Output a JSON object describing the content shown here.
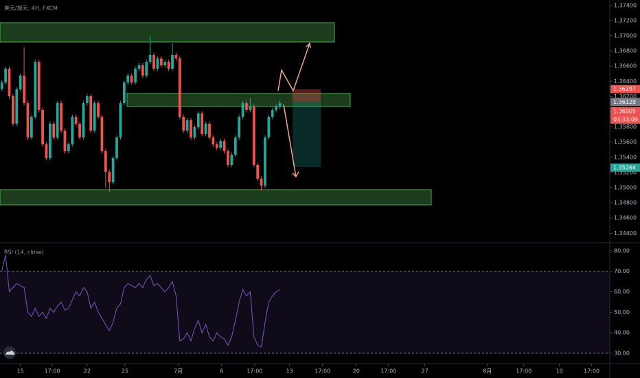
{
  "title": "美元/加元, 4H, FXCM",
  "chart_data": [
    {
      "type": "candlestick",
      "up_color": "#26a69a",
      "down_color": "#ef5350",
      "xlim": [
        -0.5,
        164
      ],
      "ylim": [
        1.34285,
        1.37471
      ],
      "xticks": [
        {
          "value": 5,
          "label": "15"
        },
        {
          "value": 13.6,
          "label": "17:00"
        },
        {
          "value": 23,
          "label": "22"
        },
        {
          "value": 33.2,
          "label": "25"
        },
        {
          "value": 47.6,
          "label": "7月"
        },
        {
          "value": 59.3,
          "label": "6"
        },
        {
          "value": 68.2,
          "label": "17:00"
        },
        {
          "value": 77.6,
          "label": "13"
        },
        {
          "value": 86.5,
          "label": "17:00"
        },
        {
          "value": 95.6,
          "label": "20"
        },
        {
          "value": 104.3,
          "label": "17:00"
        },
        {
          "value": 114.1,
          "label": "27"
        },
        {
          "value": 131,
          "label": "8月"
        },
        {
          "value": 140.8,
          "label": "17:00"
        },
        {
          "value": 150.4,
          "label": "10"
        },
        {
          "value": 159.1,
          "label": "17:00"
        }
      ],
      "yticks": [
        {
          "value": 1.374,
          "label": "1.37400"
        },
        {
          "value": 1.372,
          "label": "1.37200"
        },
        {
          "value": 1.37,
          "label": "1.37000"
        },
        {
          "value": 1.368,
          "label": "1.36800"
        },
        {
          "value": 1.366,
          "label": "1.36600"
        },
        {
          "value": 1.364,
          "label": "1.36400"
        },
        {
          "value": 1.362,
          "label": "1.36200"
        },
        {
          "value": 1.36,
          "label": "1.36000"
        },
        {
          "value": 1.358,
          "label": "1.35800"
        },
        {
          "value": 1.356,
          "label": "1.35600"
        },
        {
          "value": 1.354,
          "label": "1.35400"
        },
        {
          "value": 1.352,
          "label": "1.35200"
        },
        {
          "value": 1.35,
          "label": "1.35000"
        },
        {
          "value": 1.348,
          "label": "1.34800"
        },
        {
          "value": 1.346,
          "label": "1.34600"
        },
        {
          "value": 1.344,
          "label": "1.34400"
        }
      ],
      "open": [
        1.363,
        1.36385,
        1.36566,
        1.36204,
        1.35842,
        1.36294,
        1.36475,
        1.36113,
        1.35661,
        1.35932,
        1.36656,
        1.36023,
        1.3557,
        1.35389,
        1.35842,
        1.35661,
        1.36113,
        1.35751,
        1.3548,
        1.3557,
        1.35932,
        1.35842,
        1.35661,
        1.36113,
        1.36204,
        1.35751,
        1.36113,
        1.35932,
        1.3548,
        1.35208,
        1.35072,
        1.35389,
        1.35661,
        1.36113,
        1.36385,
        1.36475,
        1.36385,
        1.36566,
        1.36611,
        1.36475,
        1.36656,
        1.36747,
        1.36566,
        1.36701,
        1.36611,
        1.36656,
        1.36566,
        1.36747,
        1.36701,
        1.35932,
        1.35751,
        1.35887,
        1.35661,
        1.35796,
        1.35977,
        1.35706,
        1.35842,
        1.35661,
        1.3557,
        1.35525,
        1.35615,
        1.3548,
        1.35299,
        1.35434,
        1.35661,
        1.35932,
        1.36113,
        1.36023,
        1.36068,
        1.35299,
        1.35118,
        1.35027,
        1.35661,
        1.35932,
        1.36023,
        1.36068
      ],
      "high": [
        1.36415,
        1.36596,
        1.36596,
        1.36234,
        1.36324,
        1.36505,
        1.3685,
        1.36143,
        1.35962,
        1.36686,
        1.36686,
        1.36053,
        1.356,
        1.35872,
        1.35872,
        1.36143,
        1.36143,
        1.35781,
        1.356,
        1.35962,
        1.35962,
        1.35872,
        1.36143,
        1.36234,
        1.36234,
        1.36143,
        1.36143,
        1.35962,
        1.3551,
        1.35238,
        1.35419,
        1.35691,
        1.36143,
        1.36415,
        1.36505,
        1.36505,
        1.36596,
        1.36641,
        1.36641,
        1.36686,
        1.37,
        1.36777,
        1.36731,
        1.36731,
        1.36686,
        1.36686,
        1.369,
        1.36777,
        1.36731,
        1.35962,
        1.35917,
        1.35917,
        1.35826,
        1.36007,
        1.36007,
        1.35872,
        1.35872,
        1.35691,
        1.356,
        1.35645,
        1.35645,
        1.3551,
        1.35464,
        1.35691,
        1.35962,
        1.36143,
        1.36143,
        1.3618,
        1.36098,
        1.35329,
        1.35148,
        1.35691,
        1.35962,
        1.36053,
        1.36098,
        1.3615
      ],
      "low": [
        1.3627,
        1.36355,
        1.36174,
        1.35812,
        1.35812,
        1.36264,
        1.36083,
        1.35631,
        1.35631,
        1.35902,
        1.35993,
        1.3554,
        1.35359,
        1.35359,
        1.35631,
        1.35631,
        1.35721,
        1.3545,
        1.3545,
        1.3554,
        1.35812,
        1.35631,
        1.35631,
        1.36083,
        1.35721,
        1.35721,
        1.35902,
        1.3545,
        1.35,
        1.3494,
        1.35042,
        1.35359,
        1.35631,
        1.36083,
        1.36355,
        1.36355,
        1.36355,
        1.36536,
        1.36445,
        1.36445,
        1.36626,
        1.36536,
        1.36536,
        1.36581,
        1.36581,
        1.36536,
        1.36536,
        1.36671,
        1.35902,
        1.35721,
        1.35721,
        1.35631,
        1.35631,
        1.35766,
        1.35676,
        1.35676,
        1.35631,
        1.3554,
        1.35495,
        1.35495,
        1.3545,
        1.35269,
        1.35269,
        1.35404,
        1.35631,
        1.35902,
        1.35993,
        1.35993,
        1.35269,
        1.35088,
        1.3496,
        1.34997,
        1.35631,
        1.35902,
        1.35993,
        1.36038
      ],
      "close": [
        1.36385,
        1.36566,
        1.36204,
        1.35842,
        1.36294,
        1.36475,
        1.36113,
        1.35661,
        1.35932,
        1.36656,
        1.36023,
        1.3557,
        1.35389,
        1.35842,
        1.35661,
        1.36113,
        1.35751,
        1.3548,
        1.3557,
        1.35932,
        1.35842,
        1.35661,
        1.36113,
        1.36204,
        1.35751,
        1.36113,
        1.35932,
        1.3548,
        1.35208,
        1.35072,
        1.35389,
        1.35661,
        1.36113,
        1.36385,
        1.36475,
        1.36385,
        1.36566,
        1.36611,
        1.36475,
        1.36656,
        1.36747,
        1.36566,
        1.36701,
        1.36611,
        1.36656,
        1.36566,
        1.36747,
        1.36701,
        1.35932,
        1.35751,
        1.35887,
        1.35661,
        1.35796,
        1.35977,
        1.35706,
        1.35842,
        1.35661,
        1.3557,
        1.35525,
        1.35615,
        1.3548,
        1.35299,
        1.35434,
        1.35661,
        1.35932,
        1.36113,
        1.36023,
        1.36068,
        1.35299,
        1.35118,
        1.35027,
        1.35661,
        1.35932,
        1.36023,
        1.36068,
        1.36113
      ],
      "price_labels": [
        {
          "value": 1.36297,
          "color": "#ef5350"
        },
        {
          "value": 1.36128,
          "color": "#787b86"
        },
        {
          "value": 1.36005,
          "color": "#ef5350"
        },
        {
          "value": 1.35264,
          "color": "#26a69a"
        }
      ],
      "countdown": "03:33:09"
    },
    {
      "type": "line",
      "title": "RSI (14, close)",
      "color": "#7e57c2",
      "xlim": [
        -0.5,
        164
      ],
      "ylim": [
        25.3,
        83.3
      ],
      "yticks": [
        {
          "value": 80,
          "label": "80.00"
        },
        {
          "value": 70,
          "label": "70.00"
        },
        {
          "value": 60,
          "label": "60.00"
        },
        {
          "value": 50,
          "label": "50.00"
        },
        {
          "value": 40,
          "label": "40.00"
        },
        {
          "value": 30,
          "label": "30.00"
        }
      ],
      "band": [
        30,
        70
      ],
      "values": [
        70,
        78,
        60,
        62,
        64,
        63,
        62,
        50,
        48,
        52,
        48,
        50,
        47,
        52,
        50,
        53,
        55,
        51,
        52,
        56,
        60,
        58,
        62,
        60,
        52,
        55,
        50,
        47,
        44,
        41,
        45,
        52,
        54,
        62,
        64,
        63,
        62,
        64,
        62,
        66,
        68,
        63,
        64,
        62,
        60,
        62,
        65,
        58,
        36,
        37,
        40,
        36,
        42,
        46,
        40,
        44,
        38,
        36,
        40,
        38,
        37,
        34,
        38,
        46,
        55,
        61,
        58,
        60,
        38,
        34,
        33,
        45,
        55,
        58,
        60,
        61
      ]
    }
  ]
}
